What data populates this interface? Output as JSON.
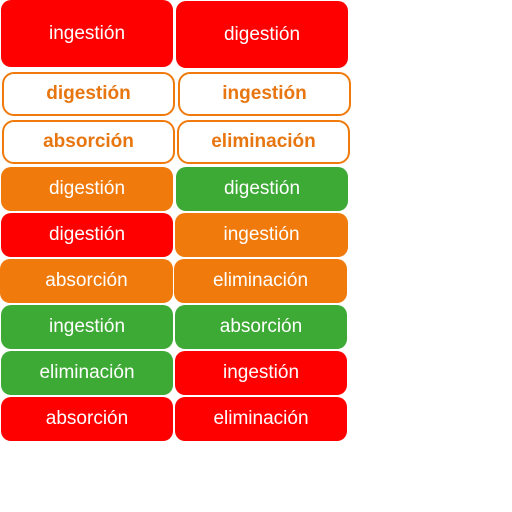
{
  "colors": {
    "red": "#ff0000",
    "orange": "#f07a0c",
    "green": "#3daa35",
    "outline_border": "#f07a0c",
    "outline_text": "#e87610"
  },
  "tiles": [
    {
      "label": "ingestión",
      "style": "red"
    },
    {
      "label": "digestión",
      "style": "red"
    },
    {
      "label": "digestión",
      "style": "outline"
    },
    {
      "label": "ingestión",
      "style": "outline"
    },
    {
      "label": "absorción",
      "style": "outline"
    },
    {
      "label": "eliminación",
      "style": "outline"
    },
    {
      "label": "digestión",
      "style": "orange"
    },
    {
      "label": "digestión",
      "style": "green"
    },
    {
      "label": "digestión",
      "style": "red"
    },
    {
      "label": "ingestión",
      "style": "orange"
    },
    {
      "label": "absorción",
      "style": "orange"
    },
    {
      "label": "eliminación",
      "style": "orange"
    },
    {
      "label": "ingestión",
      "style": "green"
    },
    {
      "label": "absorción",
      "style": "green"
    },
    {
      "label": "eliminación",
      "style": "green"
    },
    {
      "label": "ingestión",
      "style": "red"
    },
    {
      "label": "absorción",
      "style": "red"
    },
    {
      "label": "eliminación",
      "style": "red"
    }
  ]
}
